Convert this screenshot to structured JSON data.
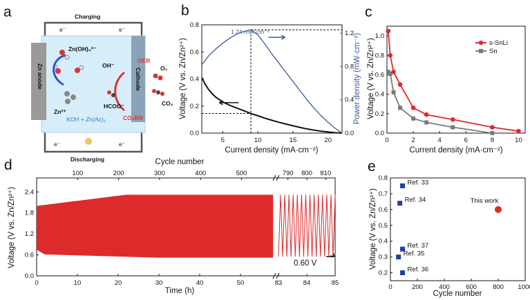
{
  "panels": {
    "a": "a",
    "b": "b",
    "c": "c",
    "d": "d",
    "e": "e"
  },
  "colors": {
    "red": "#dd2a2a",
    "gray": "#7a7a7a",
    "blue": "#3a5a9c",
    "black": "#111111",
    "marker_blue": "#1f3fa8"
  },
  "schematic": {
    "charging": "Charging",
    "discharging": "Discharging",
    "electron": "e⁻",
    "anode": "Zn anode",
    "cathode": "Cathode",
    "zincate": "Zn(OH)₄²⁻",
    "zn_ion": "Zn²⁺",
    "electrolyte": "KOH + Zn(Ac)₂",
    "oer": "OER",
    "co2rr": "CO₂RR",
    "oh": "OH⁻",
    "o2": "O₂",
    "hcoo": "HCOO⁻",
    "co2": "CO₂"
  },
  "chart_data": [
    {
      "id": "b",
      "type": "line",
      "xlabel": "Current density (mA·cm⁻²)",
      "ylabel": "Voltage (V vs. Zn/Zn²⁺)",
      "y2label": "Power density (mW·cm⁻²)",
      "xlim": [
        2,
        22
      ],
      "ylim": [
        0,
        0.8
      ],
      "y2lim": [
        0,
        1.3
      ],
      "xticks": [
        5,
        10,
        15,
        20
      ],
      "yticks": [
        0.0,
        0.2,
        0.4,
        0.6,
        0.8
      ],
      "y2ticks": [
        0.0,
        0.4,
        0.8,
        1.2
      ],
      "annotation": "1.24 mW·cm⁻²",
      "peak_x": 9,
      "series": [
        {
          "name": "Voltage",
          "axis": "left",
          "x": [
            2,
            2.5,
            3,
            3.5,
            4,
            5,
            6,
            7,
            8,
            9,
            10,
            11,
            12,
            13,
            14,
            15,
            16,
            17,
            18,
            19,
            20,
            21,
            22
          ],
          "y": [
            0.41,
            0.36,
            0.32,
            0.29,
            0.265,
            0.23,
            0.205,
            0.185,
            0.165,
            0.145,
            0.128,
            0.11,
            0.095,
            0.08,
            0.067,
            0.054,
            0.042,
            0.031,
            0.022,
            0.014,
            0.008,
            0.003,
            0.0
          ]
        },
        {
          "name": "Power density",
          "axis": "right",
          "x": [
            2,
            3,
            4,
            5,
            6,
            7,
            8,
            9,
            10,
            11,
            12,
            13,
            14,
            15,
            16,
            17,
            18,
            19,
            20,
            21,
            22
          ],
          "y": [
            0.82,
            0.93,
            1.01,
            1.08,
            1.14,
            1.19,
            1.22,
            1.24,
            1.18,
            1.07,
            0.95,
            0.84,
            0.73,
            0.62,
            0.51,
            0.4,
            0.3,
            0.21,
            0.13,
            0.06,
            0.0
          ]
        }
      ]
    },
    {
      "id": "c",
      "type": "line",
      "xlabel": "Current density (mA·cm⁻²)",
      "ylabel": "Voltage (V vs. Zn/Zn²⁺)",
      "xlim": [
        0,
        10.5
      ],
      "ylim": [
        0,
        1.1
      ],
      "xticks": [
        0,
        2,
        4,
        6,
        8,
        10
      ],
      "yticks": [
        0.0,
        0.2,
        0.4,
        0.6,
        0.8,
        1.0
      ],
      "series": [
        {
          "name": "s-SnLi",
          "x": [
            0.1,
            0.25,
            0.5,
            1,
            2,
            3,
            5,
            8,
            10
          ],
          "y": [
            1.05,
            0.8,
            0.63,
            0.5,
            0.26,
            0.19,
            0.14,
            0.06,
            0.02
          ]
        },
        {
          "name": "Sn",
          "x": [
            0.1,
            0.25,
            0.5,
            1,
            2,
            3,
            5,
            8
          ],
          "y": [
            0.63,
            0.61,
            0.42,
            0.26,
            0.15,
            0.11,
            0.06,
            0.0
          ]
        }
      ]
    },
    {
      "id": "d",
      "type": "line",
      "xlabel": "Time (h)",
      "x2label": "Cycle number",
      "ylabel": "Voltage (V vs. Zn/Zn²⁺)",
      "ylim": [
        0,
        2.8
      ],
      "yticks": [
        0.0,
        0.6,
        1.2,
        1.8,
        2.4
      ],
      "xticks_main": [
        0,
        10,
        20,
        30,
        40,
        50
      ],
      "xticks_break": [
        83,
        84,
        85
      ],
      "cycle_ticks_main": [
        100,
        200,
        300,
        400,
        500
      ],
      "cycle_ticks_break": [
        790,
        800,
        810
      ],
      "charge_start_v": 2.0,
      "charge_end_v": 2.32,
      "discharge_start_v": 0.62,
      "discharge_end_v": 0.52,
      "break_cycles": 27,
      "annotation": "0.60 V"
    },
    {
      "id": "e",
      "type": "scatter",
      "xlabel": "Cycle number",
      "ylabel": "Voltage (V vs. Zn/Zn²⁺)",
      "xlim": [
        0,
        1000
      ],
      "ylim": [
        0.15,
        0.8
      ],
      "xticks": [
        0,
        200,
        400,
        600,
        800,
        1000
      ],
      "yticks": [
        0.2,
        0.3,
        0.4,
        0.5,
        0.6,
        0.7,
        0.8
      ],
      "points": [
        {
          "label": "Ref. 33",
          "x": 90,
          "y": 0.75
        },
        {
          "label": "Ref. 34",
          "x": 70,
          "y": 0.64
        },
        {
          "label": "Ref. 37",
          "x": 90,
          "y": 0.35
        },
        {
          "label": "Ref. 35",
          "x": 60,
          "y": 0.3
        },
        {
          "label": "Ref. 36",
          "x": 90,
          "y": 0.2
        }
      ],
      "this_work": {
        "label": "This work",
        "x": 800,
        "y": 0.6
      }
    }
  ]
}
